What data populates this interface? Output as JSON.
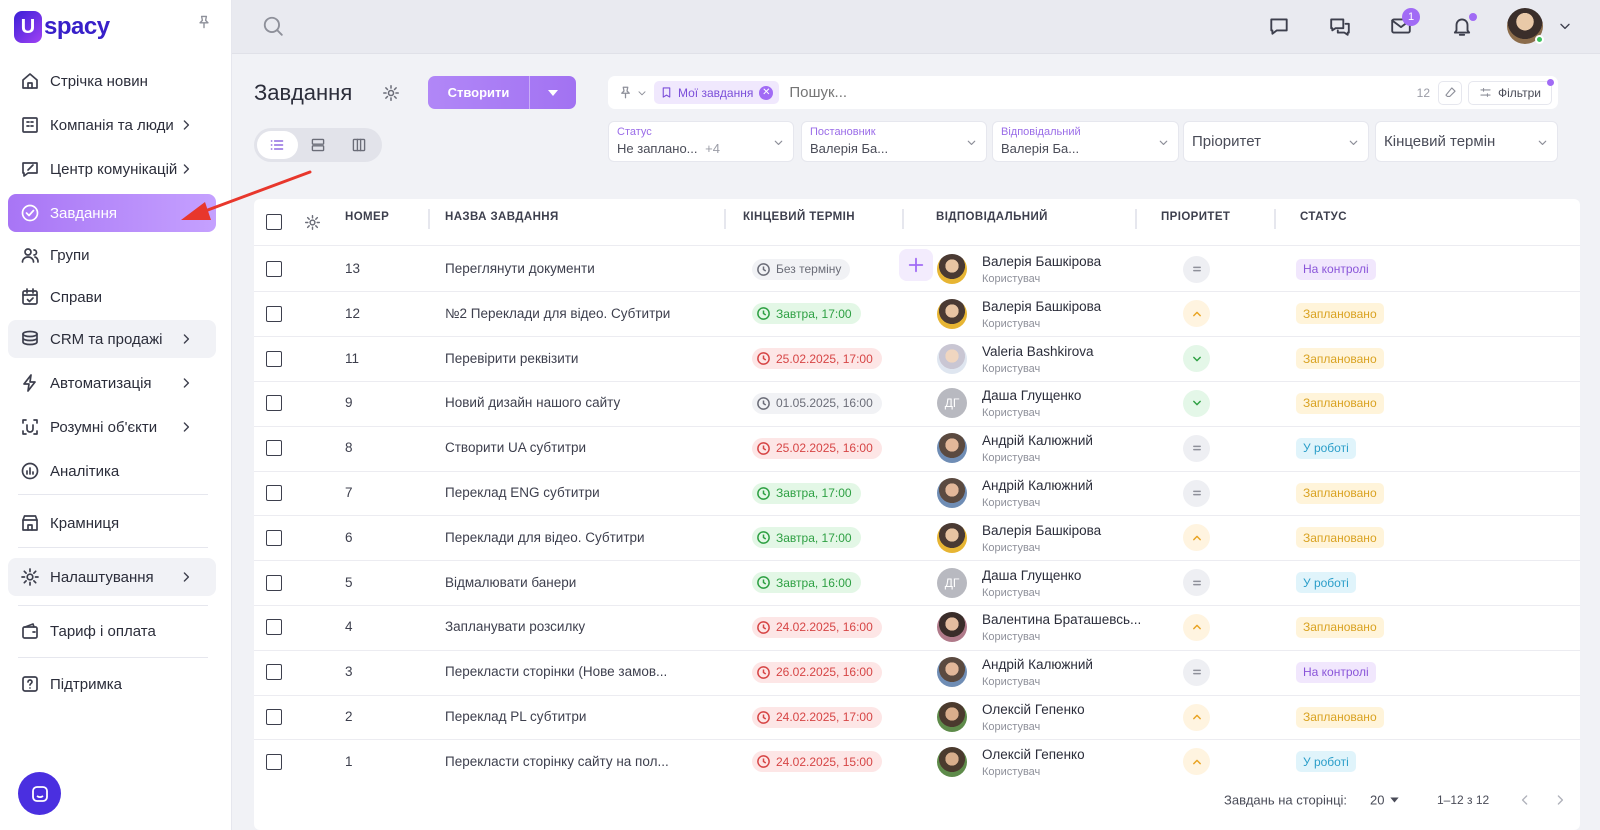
{
  "app": {
    "logo_letter": "U",
    "logo_text": "spacy"
  },
  "sidebar": {
    "items": [
      {
        "label": "Стрічка новин",
        "icon": "home-icon"
      },
      {
        "label": "Компанія та люди",
        "icon": "building-icon"
      },
      {
        "label": "Центр комунікацій",
        "icon": "chat-edit-icon"
      },
      {
        "label": "Завдання",
        "icon": "check-circle-icon"
      },
      {
        "label": "Групи",
        "icon": "users-icon"
      },
      {
        "label": "Справи",
        "icon": "calendar-check-icon"
      },
      {
        "label": "CRM та продажі",
        "icon": "coins-icon"
      },
      {
        "label": "Автоматизація",
        "icon": "bolt-icon"
      },
      {
        "label": "Розумні об'єкти",
        "icon": "smart-object-icon"
      },
      {
        "label": "Аналітика",
        "icon": "chart-icon"
      },
      {
        "label": "Крамниця",
        "icon": "store-icon"
      },
      {
        "label": "Налаштування",
        "icon": "gear-icon"
      },
      {
        "label": "Тариф і оплата",
        "icon": "wallet-icon"
      },
      {
        "label": "Підтримка",
        "icon": "help-icon"
      }
    ]
  },
  "topbar": {
    "mail_badge": "1"
  },
  "page": {
    "title": "Завдання",
    "create_label": "Створити"
  },
  "search": {
    "chip_label": "Мої завдання",
    "placeholder": "Пошук...",
    "count": "12",
    "filters_label": "Фільтри"
  },
  "filters": [
    {
      "label": "Статус",
      "value": "Не заплано...",
      "extra": "+4"
    },
    {
      "label": "Постановник",
      "value": "Валерія Ба..."
    },
    {
      "label": "Відповідальний",
      "value": "Валерія Ба..."
    },
    {
      "label": "",
      "value": "Пріоритет"
    },
    {
      "label": "",
      "value": "Кінцевий термін"
    }
  ],
  "table": {
    "headers": {
      "number": "НОМЕР",
      "name": "НАЗВА ЗАВДАННЯ",
      "due": "КІНЦЕВИЙ ТЕРМІН",
      "assignee": "ВІДПОВІДАЛЬНИЙ",
      "priority": "ПРІОРИТЕТ",
      "status": "СТАТУС"
    },
    "rows": [
      {
        "num": "13",
        "name": "Переглянути документи",
        "due": "Без терміну",
        "due_tone": "gray",
        "user": "Валерія Башкірова",
        "role": "Користувач",
        "avatar": "p1",
        "initials": "",
        "prio": "eq",
        "status": "На контролі",
        "st": "ctrl"
      },
      {
        "num": "12",
        "name": "№2 Переклади для відео. Субтитри",
        "due": "Завтра, 17:00",
        "due_tone": "green",
        "user": "Валерія Башкірова",
        "role": "Користувач",
        "avatar": "p1",
        "initials": "",
        "prio": "up",
        "status": "Заплановано",
        "st": "plan"
      },
      {
        "num": "11",
        "name": "Перевірити реквізити",
        "due": "25.02.2025, 17:00",
        "due_tone": "red",
        "user": "Valeria Bashkirova",
        "role": "Користувач",
        "avatar": "p2",
        "initials": "",
        "prio": "dn",
        "status": "Заплановано",
        "st": "plan"
      },
      {
        "num": "9",
        "name": "Новий дизайн нашого сайту",
        "due": "01.05.2025, 16:00",
        "due_tone": "gray",
        "user": "Даша Глущенко",
        "role": "Користувач",
        "avatar": "init",
        "initials": "ДГ",
        "prio": "dn",
        "status": "Заплановано",
        "st": "plan"
      },
      {
        "num": "8",
        "name": "Створити UA субтитри",
        "due": "25.02.2025, 16:00",
        "due_tone": "red",
        "user": "Андрій Калюжний",
        "role": "Користувач",
        "avatar": "p3",
        "initials": "",
        "prio": "eq",
        "status": "У роботі",
        "st": "work"
      },
      {
        "num": "7",
        "name": "Переклад ENG субтитри",
        "due": "Завтра, 17:00",
        "due_tone": "green",
        "user": "Андрій Калюжний",
        "role": "Користувач",
        "avatar": "p3",
        "initials": "",
        "prio": "eq",
        "status": "Заплановано",
        "st": "plan"
      },
      {
        "num": "6",
        "name": "Переклади для відео. Субтитри",
        "due": "Завтра, 17:00",
        "due_tone": "green",
        "user": "Валерія Башкірова",
        "role": "Користувач",
        "avatar": "p1",
        "initials": "",
        "prio": "up",
        "status": "Заплановано",
        "st": "plan"
      },
      {
        "num": "5",
        "name": "Відмалювати банери",
        "due": "Завтра, 16:00",
        "due_tone": "green",
        "user": "Даша Глущенко",
        "role": "Користувач",
        "avatar": "init",
        "initials": "ДГ",
        "prio": "eq",
        "status": "У роботі",
        "st": "work"
      },
      {
        "num": "4",
        "name": "Запланувати розсилку",
        "due": "24.02.2025, 16:00",
        "due_tone": "red",
        "user": "Валентина Браташевсь...",
        "role": "Користувач",
        "avatar": "p4",
        "initials": "",
        "prio": "up",
        "status": "Заплановано",
        "st": "plan"
      },
      {
        "num": "3",
        "name": "Перекласти сторінки (Нове замов...",
        "due": "26.02.2025, 16:00",
        "due_tone": "red",
        "user": "Андрій Калюжний",
        "role": "Користувач",
        "avatar": "p3",
        "initials": "",
        "prio": "eq",
        "status": "На контролі",
        "st": "ctrl"
      },
      {
        "num": "2",
        "name": "Переклад PL субтитри",
        "due": "24.02.2025, 17:00",
        "due_tone": "red",
        "user": "Олексій Гепенко",
        "role": "Користувач",
        "avatar": "p5",
        "initials": "",
        "prio": "up",
        "status": "Заплановано",
        "st": "plan"
      },
      {
        "num": "1",
        "name": "Перекласти сторінку сайту на пол...",
        "due": "24.02.2025, 15:00",
        "due_tone": "red",
        "user": "Олексій Гепенко",
        "role": "Користувач",
        "avatar": "p5",
        "initials": "",
        "prio": "up",
        "status": "У роботі",
        "st": "work"
      }
    ]
  },
  "footer": {
    "per_page_label": "Завдань на сторінці:",
    "per_page": "20",
    "range": "1–12 з 12"
  },
  "colors": {
    "accent": "#a16bf5",
    "annotation_arrow": "#e8372c"
  }
}
